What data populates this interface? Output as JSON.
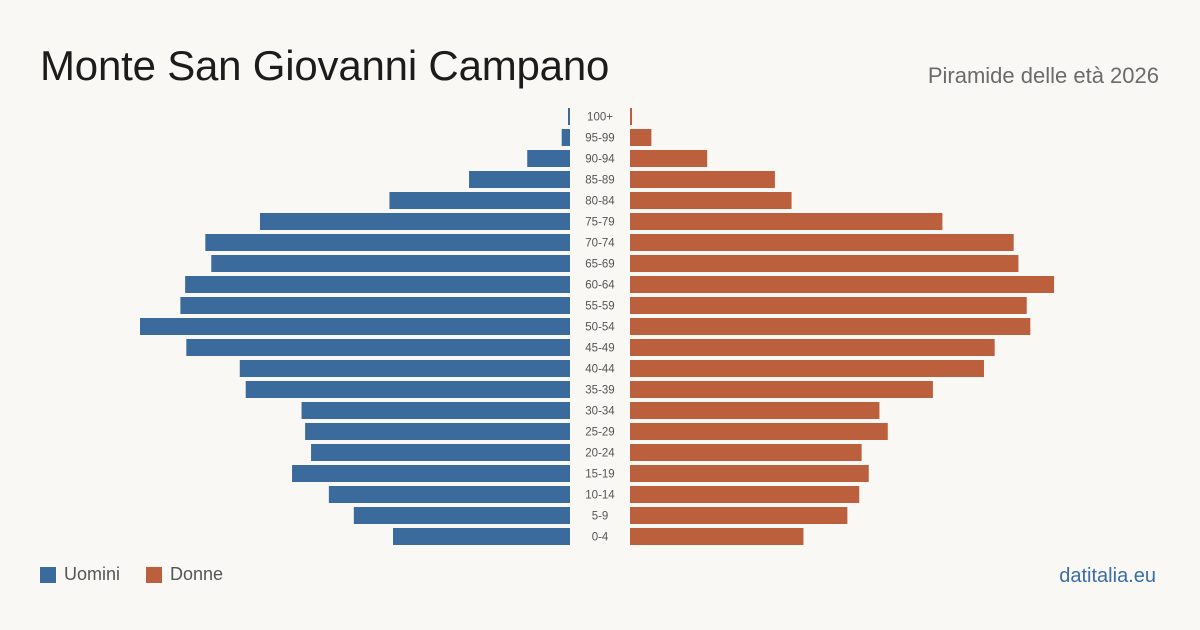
{
  "header": {
    "title": "Monte San Giovanni Campano",
    "subtitle": "Piramide delle età 2026"
  },
  "legend": {
    "male_label": "Uomini",
    "female_label": "Donne"
  },
  "footer": {
    "source": "datitalia.eu"
  },
  "colors": {
    "male": "#3b6a9c",
    "female": "#bb5f3d",
    "background": "#f9f8f4"
  },
  "chart_data": {
    "type": "bar",
    "orientation": "horizontal-pyramid",
    "categories": [
      "100+",
      "95-99",
      "90-94",
      "85-89",
      "80-84",
      "75-79",
      "70-74",
      "65-69",
      "60-64",
      "55-59",
      "50-54",
      "45-49",
      "40-44",
      "35-39",
      "30-34",
      "25-29",
      "20-24",
      "15-19",
      "10-14",
      "5-9",
      "0-4"
    ],
    "series": [
      {
        "name": "Uomini",
        "values": [
          1,
          7,
          36,
          85,
          152,
          261,
          307,
          302,
          324,
          328,
          362,
          323,
          278,
          273,
          226,
          223,
          218,
          234,
          203,
          182,
          149
        ]
      },
      {
        "name": "Donne",
        "values": [
          1,
          18,
          65,
          122,
          136,
          263,
          323,
          327,
          357,
          334,
          337,
          307,
          298,
          255,
          210,
          217,
          195,
          201,
          193,
          183,
          146
        ]
      }
    ],
    "xlim": [
      0,
      362
    ],
    "grid": false,
    "legend_position": "bottom-left"
  }
}
